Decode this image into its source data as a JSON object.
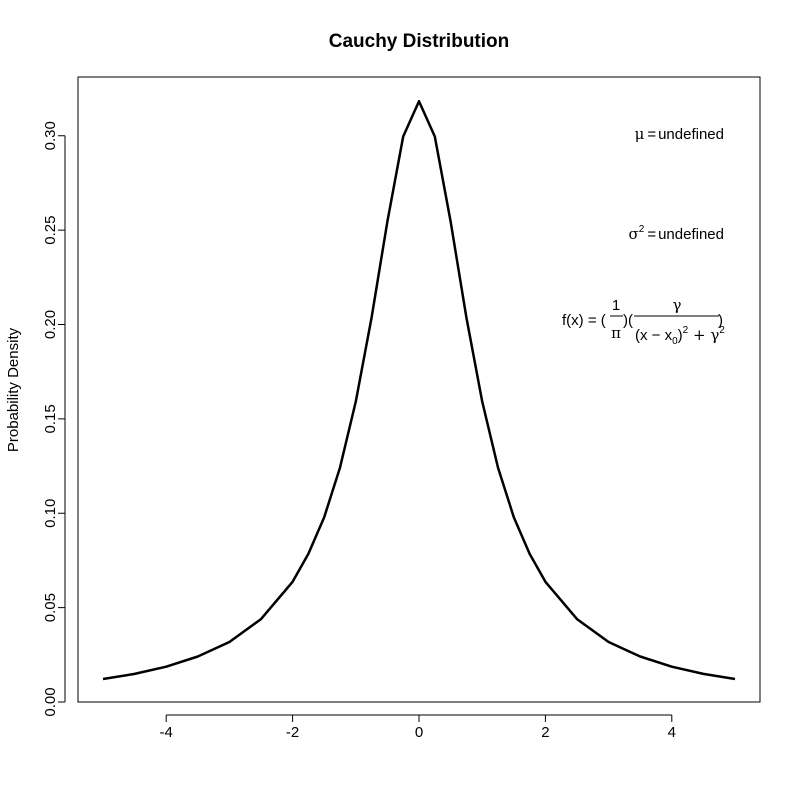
{
  "chart_data": {
    "type": "line",
    "title": "Cauchy Distribution",
    "xlabel": "",
    "ylabel": "Probability Density",
    "xlim": [
      -5,
      5
    ],
    "ylim": [
      0,
      0.32
    ],
    "x_ticks": [
      -4,
      -2,
      0,
      2,
      4
    ],
    "x_tick_labels": [
      "-4",
      "-2",
      "0",
      "2",
      "4"
    ],
    "y_ticks": [
      0,
      0.05,
      0.1,
      0.15,
      0.2,
      0.25,
      0.3
    ],
    "y_tick_labels": [
      "0.00",
      "0.05",
      "0.10",
      "0.15",
      "0.20",
      "0.25",
      "0.30"
    ],
    "grid": false,
    "line_color": "#000000",
    "series": [
      {
        "x": [
          -5.0,
          -4.5,
          -4.0,
          -3.5,
          -3.0,
          -2.5,
          -2.0,
          -1.75,
          -1.5,
          -1.25,
          -1.0,
          -0.75,
          -0.5,
          -0.25,
          0.0,
          0.25,
          0.5,
          0.75,
          1.0,
          1.25,
          1.5,
          1.75,
          2.0,
          2.5,
          3.0,
          3.5,
          4.0,
          4.5,
          5.0
        ],
        "y": [
          0.0122,
          0.0149,
          0.0187,
          0.0241,
          0.0318,
          0.0439,
          0.0637,
          0.0785,
          0.0979,
          0.1242,
          0.1592,
          0.2037,
          0.2546,
          0.2996,
          0.3183,
          0.2996,
          0.2546,
          0.2037,
          0.1592,
          0.1242,
          0.0979,
          0.0785,
          0.0637,
          0.0439,
          0.0318,
          0.0241,
          0.0187,
          0.0149,
          0.0122
        ]
      }
    ],
    "annotations": {
      "mean": {
        "symbol": "μ",
        "eq": "=",
        "value": "undefined"
      },
      "variance": {
        "symbol": "σ",
        "sup": "2",
        "eq": "=",
        "value": "undefined"
      },
      "pdf": {
        "lhs": "f(x) = (",
        "frac1_num": "1",
        "frac1_den": "π",
        "mid": ")(",
        "frac2_num": "γ",
        "den_a": "(x − x",
        "den_sub": "0",
        "den_b": ")",
        "den_sup1": "2",
        "den_plus": " + γ",
        "den_sup2": "2",
        "rhs": ")"
      }
    }
  }
}
